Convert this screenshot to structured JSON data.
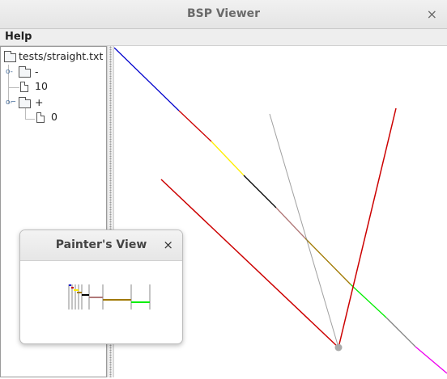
{
  "window": {
    "title": "BSP Viewer",
    "close_glyph": "×"
  },
  "menubar": {
    "help_label": "Help"
  },
  "tree": {
    "root_label": "tests/straight.txt",
    "nodes": [
      {
        "label": "-",
        "child": "10"
      },
      {
        "label": "+",
        "child": "0"
      }
    ]
  },
  "painter_window": {
    "title": "Painter's View",
    "close_glyph": "×"
  },
  "colors": {
    "segment_blue": "#0000cc",
    "segment_red": "#cc0000",
    "segment_yellow": "#ffee00",
    "segment_black": "#000000",
    "segment_rosy": "#b07878",
    "segment_olive": "#a07800",
    "segment_green": "#00ee00",
    "segment_gray": "#808080",
    "segment_magenta": "#ee00ee",
    "camera_marker": "#aaaaaa"
  }
}
